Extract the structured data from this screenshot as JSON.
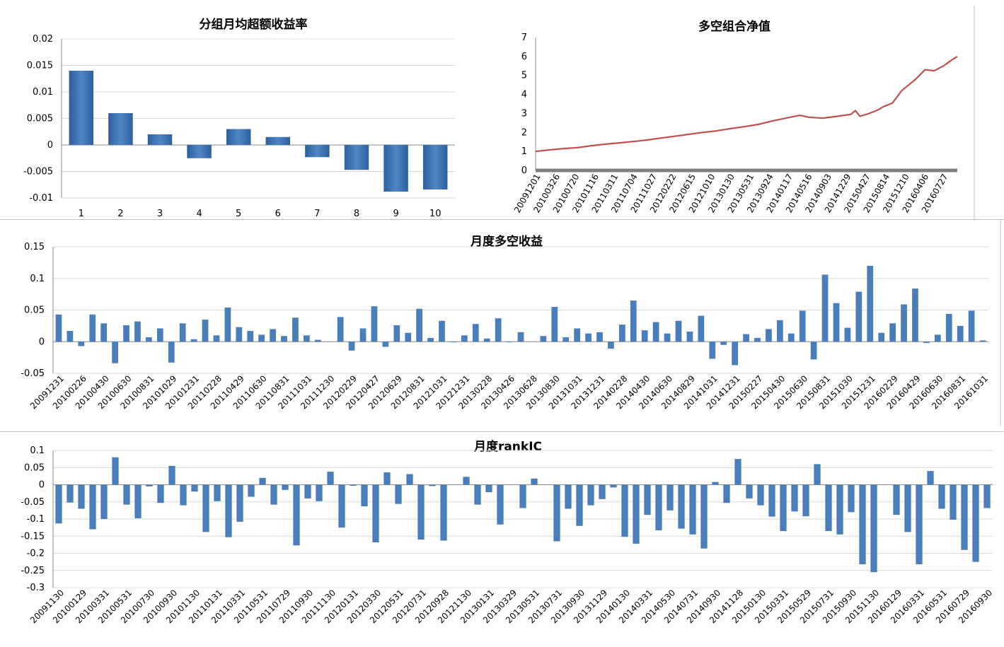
{
  "chart_data": [
    {
      "id": "group",
      "type": "bar",
      "title": "分组月均超额收益率",
      "categories": [
        "1",
        "2",
        "3",
        "4",
        "5",
        "6",
        "7",
        "8",
        "9",
        "10"
      ],
      "values": [
        0.014,
        0.006,
        0.002,
        -0.0025,
        0.003,
        0.0015,
        -0.0023,
        -0.0047,
        -0.0088,
        -0.0084
      ],
      "ylim": [
        -0.01,
        0.02
      ],
      "yticks": [
        -0.01,
        -0.005,
        0,
        0.005,
        0.01,
        0.015,
        0.02
      ],
      "ytick_labels": [
        "-0.01",
        "-0.005",
        "0",
        "0.005",
        "0.01",
        "0.015",
        "0.02"
      ],
      "grid": true
    },
    {
      "id": "nav",
      "type": "line",
      "title": "多空组合净值",
      "color": "#c0504d",
      "ylim": [
        0,
        7
      ],
      "yticks": [
        0,
        1,
        2,
        3,
        4,
        5,
        6,
        7
      ],
      "ytick_labels": [
        "0",
        "1",
        "2",
        "3",
        "4",
        "5",
        "6",
        "7"
      ],
      "xtick_labels": [
        "20091201",
        "20100326",
        "20100720",
        "20101116",
        "20110311",
        "20110704",
        "20111027",
        "20120222",
        "20120615",
        "20121010",
        "20130130",
        "20130531",
        "20130924",
        "20140117",
        "20140516",
        "20140903",
        "20141229",
        "20150427",
        "20150814",
        "20151210",
        "20160406",
        "20160727"
      ],
      "points": [
        [
          0,
          1.0
        ],
        [
          3,
          1.08
        ],
        [
          6,
          1.15
        ],
        [
          9,
          1.2
        ],
        [
          12,
          1.3
        ],
        [
          15,
          1.38
        ],
        [
          18,
          1.45
        ],
        [
          21,
          1.52
        ],
        [
          24,
          1.6
        ],
        [
          27,
          1.7
        ],
        [
          30,
          1.8
        ],
        [
          33,
          1.9
        ],
        [
          36,
          2.0
        ],
        [
          39,
          2.08
        ],
        [
          42,
          2.2
        ],
        [
          45,
          2.3
        ],
        [
          48,
          2.42
        ],
        [
          51,
          2.6
        ],
        [
          54,
          2.75
        ],
        [
          57,
          2.9
        ],
        [
          59,
          2.8
        ],
        [
          62,
          2.75
        ],
        [
          65,
          2.85
        ],
        [
          68,
          2.95
        ],
        [
          69,
          3.15
        ],
        [
          70,
          2.85
        ],
        [
          72,
          3.0
        ],
        [
          74,
          3.2
        ],
        [
          75,
          3.35
        ],
        [
          77,
          3.55
        ],
        [
          79,
          4.2
        ],
        [
          82,
          4.8
        ],
        [
          84,
          5.3
        ],
        [
          86,
          5.25
        ],
        [
          88,
          5.5
        ],
        [
          90,
          5.85
        ],
        [
          91,
          6.0
        ]
      ],
      "x_extent": 91
    },
    {
      "id": "ls",
      "type": "bar",
      "title": "月度多空收益",
      "values": [
        0.043,
        0.017,
        -0.007,
        0.043,
        0.029,
        -0.034,
        0.026,
        0.032,
        0.007,
        0.021,
        -0.033,
        0.029,
        0.004,
        0.035,
        0.01,
        0.054,
        0.023,
        0.017,
        0.011,
        0.02,
        0.009,
        0.038,
        0.01,
        0.003,
        0,
        0.039,
        -0.014,
        0.021,
        0.056,
        -0.008,
        0.026,
        0.014,
        0.052,
        0.006,
        0.033,
        -0.001,
        0.01,
        0.028,
        0.005,
        0.037,
        -0.001,
        0.015,
        0,
        0.009,
        0.055,
        0.007,
        0.021,
        0.013,
        0.015,
        -0.011,
        0.027,
        0.065,
        0.018,
        0.031,
        0.013,
        0.033,
        0.016,
        0.041,
        -0.027,
        -0.005,
        -0.037,
        0.012,
        0.006,
        0.02,
        0.034,
        0.013,
        0.049,
        -0.028,
        0.106,
        0.061,
        0.022,
        0.079,
        0.12,
        0.014,
        0.029,
        0.059,
        0.084,
        -0.002,
        0.011,
        0.044,
        0.025,
        0.049,
        0.002
      ],
      "ylim": [
        -0.05,
        0.15
      ],
      "yticks": [
        -0.05,
        0,
        0.05,
        0.1,
        0.15
      ],
      "ytick_labels": [
        "-0.05",
        "0",
        "0.05",
        "0.1",
        "0.15"
      ],
      "xtick_labels": [
        "20091231",
        "20100226",
        "20100430",
        "20100630",
        "20100831",
        "20101029",
        "20101231",
        "20110228",
        "20110429",
        "20110630",
        "20110831",
        "20111031",
        "20111230",
        "20120229",
        "20120427",
        "20120629",
        "20120831",
        "20121031",
        "20121231",
        "20130228",
        "20130426",
        "20130628",
        "20130830",
        "20131031",
        "20131231",
        "20140228",
        "20140430",
        "20140630",
        "20140829",
        "20141031",
        "20141231",
        "20150227",
        "20150430",
        "20150630",
        "20150831",
        "20151030",
        "20151231",
        "20160229",
        "20160429",
        "20160630",
        "20160831",
        "20161031"
      ],
      "grid": true
    },
    {
      "id": "ic",
      "type": "bar",
      "title": "月度rankIC",
      "values": [
        -0.113,
        -0.052,
        -0.07,
        -0.13,
        -0.1,
        0.08,
        -0.058,
        -0.098,
        -0.005,
        -0.053,
        0.055,
        -0.06,
        -0.02,
        -0.138,
        -0.048,
        -0.153,
        -0.108,
        -0.035,
        0.02,
        -0.058,
        -0.015,
        -0.177,
        -0.04,
        -0.048,
        0.038,
        -0.125,
        -0.003,
        -0.063,
        -0.168,
        0.036,
        -0.056,
        0.031,
        -0.16,
        -0.004,
        -0.163,
        0,
        0.023,
        -0.058,
        -0.022,
        -0.116,
        0,
        -0.068,
        0.018,
        0,
        -0.165,
        -0.07,
        -0.12,
        -0.06,
        -0.042,
        -0.008,
        -0.152,
        -0.172,
        -0.088,
        -0.133,
        -0.075,
        -0.128,
        -0.145,
        -0.186,
        0.008,
        -0.053,
        0.075,
        -0.04,
        -0.06,
        -0.093,
        -0.135,
        -0.078,
        -0.092,
        0.06,
        -0.135,
        -0.145,
        -0.08,
        -0.232,
        -0.255,
        0,
        -0.088,
        -0.138,
        -0.232,
        0.04,
        -0.07,
        -0.102,
        -0.19,
        -0.225,
        -0.068
      ],
      "ylim": [
        -0.3,
        0.1
      ],
      "yticks": [
        -0.3,
        -0.25,
        -0.2,
        -0.15,
        -0.1,
        -0.05,
        0,
        0.05,
        0.1
      ],
      "ytick_labels": [
        "-0.3",
        "-0.25",
        "-0.2",
        "-0.15",
        "-0.1",
        "-0.05",
        "0",
        "0.05",
        "0.1"
      ],
      "xtick_labels": [
        "20091130",
        "20100129",
        "20100331",
        "20100531",
        "20100730",
        "20100930",
        "20101130",
        "20110131",
        "20110331",
        "20110531",
        "20110729",
        "20110930",
        "20111130",
        "20120131",
        "20120330",
        "20120531",
        "20120731",
        "20120928",
        "20121130",
        "20130131",
        "20130329",
        "20130531",
        "20130731",
        "20130930",
        "20131129",
        "20140130",
        "20140331",
        "20140530",
        "20140731",
        "20140930",
        "20141128",
        "20150130",
        "20150331",
        "20150529",
        "20150731",
        "20150930",
        "20151130",
        "20160129",
        "20160331",
        "20160531",
        "20160729",
        "20160930"
      ],
      "grid": true
    }
  ]
}
